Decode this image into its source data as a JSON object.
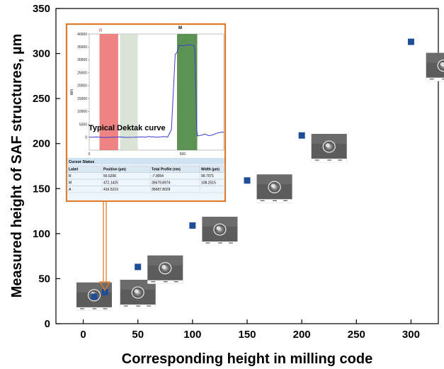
{
  "chart_data": {
    "type": "scatter",
    "xlabel": "Corresponding height in milling code",
    "ylabel": "Measured height of SAF structures, µm",
    "xlim": [
      -25,
      325
    ],
    "ylim": [
      0,
      350
    ],
    "x_ticks": [
      0,
      50,
      100,
      150,
      200,
      250,
      300
    ],
    "y_ticks": [
      0,
      50,
      100,
      150,
      200,
      250,
      300,
      350
    ],
    "grid": false,
    "marker_color": "#1f4e96",
    "series": [
      {
        "x": [
          10,
          20,
          50,
          100,
          150,
          200,
          300
        ],
        "y": [
          30,
          35,
          63,
          109,
          159,
          209,
          313
        ]
      }
    ]
  },
  "inset": {
    "caption": "Typical Dektak curve",
    "y_unit": "nm",
    "y_ticks": [
      "0",
      "5000",
      "10000",
      "15000",
      "20000",
      "25000",
      "30000",
      "35000",
      "40000"
    ],
    "x_ticks": [
      "0",
      "500"
    ],
    "marker_r": "R",
    "marker_m": "M",
    "border_color": "#e07b2a",
    "profile": {
      "x": [
        0,
        40,
        80,
        120,
        160,
        200,
        240,
        280,
        300,
        320,
        330,
        340,
        360,
        380,
        400,
        420,
        440,
        460,
        470,
        480,
        500,
        520,
        540,
        560,
        565,
        570,
        575,
        580,
        600,
        620,
        640,
        660,
        680,
        700,
        720
      ],
      "y": [
        0,
        100,
        -100,
        0,
        100,
        -50,
        0,
        150,
        50,
        300,
        100,
        200,
        0,
        150,
        250,
        100,
        3000,
        32000,
        33000,
        35600,
        35400,
        35700,
        35800,
        35600,
        34000,
        20000,
        3000,
        500,
        800,
        1200,
        600,
        900,
        1500,
        1900,
        2000
      ]
    }
  },
  "cursor_status": {
    "title": "Cursor Status",
    "columns": [
      "Label",
      "Position (µm)",
      "Total Profile (nm)",
      "Width (µm)"
    ],
    "rows": [
      [
        "R",
        "55.6206",
        "-7.9054",
        "99.7071"
      ],
      [
        "M",
        "472.1425",
        "35679.8974",
        "108.2515"
      ],
      [
        "A",
        "416.5219",
        "35687.8029",
        ""
      ]
    ]
  },
  "sem_images": [
    {
      "x": 10,
      "y": 30
    },
    {
      "x": 50,
      "y": 33
    },
    {
      "x": 75,
      "y": 60
    },
    {
      "x": 125,
      "y": 103
    },
    {
      "x": 175,
      "y": 150
    },
    {
      "x": 225,
      "y": 195
    },
    {
      "x": 330,
      "y": 285
    }
  ]
}
